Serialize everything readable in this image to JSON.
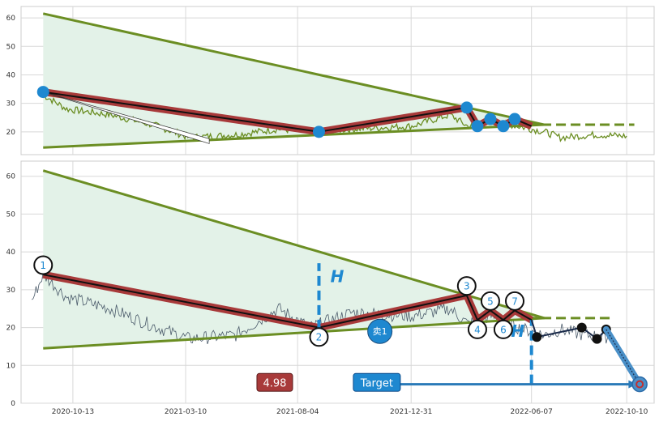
{
  "chart_data": [
    {
      "type": "line",
      "panel": "top",
      "ylim": [
        12,
        64
      ],
      "yticks": [
        "20",
        "30",
        "40",
        "50",
        "60"
      ],
      "grid": true,
      "triangle": {
        "upper": [
          [
            "2020-09-04",
            61.5
          ],
          [
            "2022-06-24",
            22.5
          ]
        ],
        "lower": [
          [
            "2020-09-04",
            14.5
          ],
          [
            "2022-06-24",
            22.5
          ]
        ],
        "fill": "#e3f2e8",
        "line_color": "#6b8e23"
      },
      "price_series": {
        "color": "#6b8e23",
        "anchors": [
          [
            "2020-09-04",
            33
          ],
          [
            "2020-10-05",
            28
          ],
          [
            "2020-12-01",
            26
          ],
          [
            "2021-02-01",
            22
          ],
          [
            "2021-03-15",
            18
          ],
          [
            "2021-05-15",
            19
          ],
          [
            "2021-07-10",
            21
          ],
          [
            "2021-08-20",
            20
          ],
          [
            "2021-10-15",
            21
          ],
          [
            "2022-01-01",
            22
          ],
          [
            "2022-02-20",
            26
          ],
          [
            "2022-03-15",
            22
          ],
          [
            "2022-04-15",
            24
          ],
          [
            "2022-05-20",
            22
          ],
          [
            "2022-06-24",
            20
          ],
          [
            "2022-07-15",
            18
          ],
          [
            "2022-09-01",
            19
          ],
          [
            "2022-10-10",
            18.5
          ]
        ]
      },
      "pivot_path": {
        "color": "#a83a3a",
        "points": [
          [
            "2020-09-04",
            34
          ],
          [
            "2021-09-01",
            20
          ],
          [
            "2022-03-14",
            28.5
          ],
          [
            "2022-03-28",
            22
          ],
          [
            "2022-04-14",
            24.5
          ],
          [
            "2022-05-01",
            22
          ],
          [
            "2022-05-16",
            24.5
          ],
          [
            "2022-06-07",
            22
          ]
        ]
      },
      "marker_dates": [
        [
          "2020-09-04",
          34
        ],
        [
          "2021-09-01",
          20
        ],
        [
          "2022-03-14",
          28.5
        ],
        [
          "2022-03-28",
          22
        ],
        [
          "2022-04-14",
          24.5
        ],
        [
          "2022-05-01",
          22
        ],
        [
          "2022-05-16",
          24.5
        ]
      ],
      "arrow": {
        "from": [
          "2020-09-04",
          34
        ],
        "to": [
          "2021-04-10",
          17
        ]
      },
      "dashed_level": {
        "y": 22.5,
        "from": "2022-06-01",
        "to": "2022-10-20",
        "color": "#6b8e23"
      }
    },
    {
      "type": "line",
      "panel": "bottom",
      "ylim": [
        0,
        64
      ],
      "yticks": [
        "0",
        "10",
        "20",
        "30",
        "40",
        "50",
        "60"
      ],
      "xticks": [
        "2020-10-13",
        "2021-03-10",
        "2021-08-04",
        "2021-12-31",
        "2022-06-07",
        "2022-10-10"
      ],
      "grid": true,
      "triangle": {
        "upper": [
          [
            "2020-09-04",
            61.5
          ],
          [
            "2022-06-24",
            22.5
          ]
        ],
        "lower": [
          [
            "2020-09-04",
            14.5
          ],
          [
            "2022-06-24",
            22.5
          ]
        ],
        "fill": "#e3f2e8",
        "line_color": "#6b8e23"
      },
      "price_series": {
        "color": "#4a5a6a",
        "anchors": [
          [
            "2020-08-20",
            27
          ],
          [
            "2020-09-04",
            34
          ],
          [
            "2020-10-05",
            28
          ],
          [
            "2020-12-01",
            25
          ],
          [
            "2021-02-01",
            20
          ],
          [
            "2021-03-15",
            17
          ],
          [
            "2021-05-15",
            18
          ],
          [
            "2021-07-10",
            25
          ],
          [
            "2021-08-20",
            20
          ],
          [
            "2021-10-15",
            24
          ],
          [
            "2022-01-01",
            23
          ],
          [
            "2022-02-20",
            25
          ],
          [
            "2022-03-15",
            21
          ],
          [
            "2022-04-15",
            23
          ],
          [
            "2022-05-20",
            20
          ],
          [
            "2022-06-24",
            18
          ],
          [
            "2022-07-15",
            19.5
          ],
          [
            "2022-08-15",
            18
          ],
          [
            "2022-09-15",
            17.5
          ]
        ]
      },
      "pivot_path": {
        "color": "#a83a3a",
        "points": [
          [
            "2020-09-04",
            34
          ],
          [
            "2021-09-01",
            20
          ],
          [
            "2022-03-14",
            28.5
          ],
          [
            "2022-03-28",
            22
          ],
          [
            "2022-04-14",
            24.5
          ],
          [
            "2022-05-01",
            22
          ],
          [
            "2022-05-16",
            24.5
          ],
          [
            "2022-06-07",
            22
          ]
        ]
      },
      "pivots": [
        {
          "label": "1",
          "x": "2020-09-04",
          "y": 36.5
        },
        {
          "label": "2",
          "x": "2021-09-01",
          "y": 17.5
        },
        {
          "label": "3",
          "x": "2022-03-14",
          "y": 31
        },
        {
          "label": "4",
          "x": "2022-03-28",
          "y": 19.5
        },
        {
          "label": "5",
          "x": "2022-04-14",
          "y": 27
        },
        {
          "label": "6",
          "x": "2022-05-01",
          "y": 19.5
        },
        {
          "label": "7",
          "x": "2022-05-16",
          "y": 27
        }
      ],
      "labels": {
        "h": "H",
        "sell": "卖1",
        "price": "4.98",
        "target": "Target"
      },
      "h_lines": [
        {
          "x": "2021-09-01",
          "y0": 19.5,
          "y1": 37,
          "label_x": "2021-09-25",
          "label_y": 32
        },
        {
          "x": "2022-06-07",
          "y0": 5,
          "y1": 22,
          "label_x": "2022-05-20",
          "label_y": 17.5
        }
      ],
      "sell_marker": {
        "x": "2021-11-20",
        "y": 19
      },
      "black_path": [
        [
          "2022-06-07",
          22
        ],
        [
          "2022-06-14",
          17.5
        ],
        [
          "2022-08-12",
          20
        ],
        [
          "2022-09-01",
          17
        ],
        [
          "2022-09-13",
          19.5
        ]
      ],
      "blue_path": {
        "from": [
          "2022-09-13",
          19.5
        ],
        "to": [
          "2022-10-27",
          5
        ],
        "color": "#4a90c8"
      },
      "target_point": {
        "x": "2022-10-27",
        "y": 5
      },
      "target_arrow": {
        "from": [
          "2021-12-10",
          5
        ],
        "to": [
          "2022-10-23",
          5
        ]
      },
      "price_badge": {
        "x": "2021-07-05",
        "y": 5.5,
        "bg": "#a83a3a"
      },
      "target_badge": {
        "x": "2021-11-16",
        "y": 5.5,
        "bg": "#1e88d0"
      },
      "dashed_level": {
        "y": 22.5,
        "from": "2022-06-01",
        "to": "2022-09-23",
        "color": "#6b8e23"
      }
    }
  ]
}
